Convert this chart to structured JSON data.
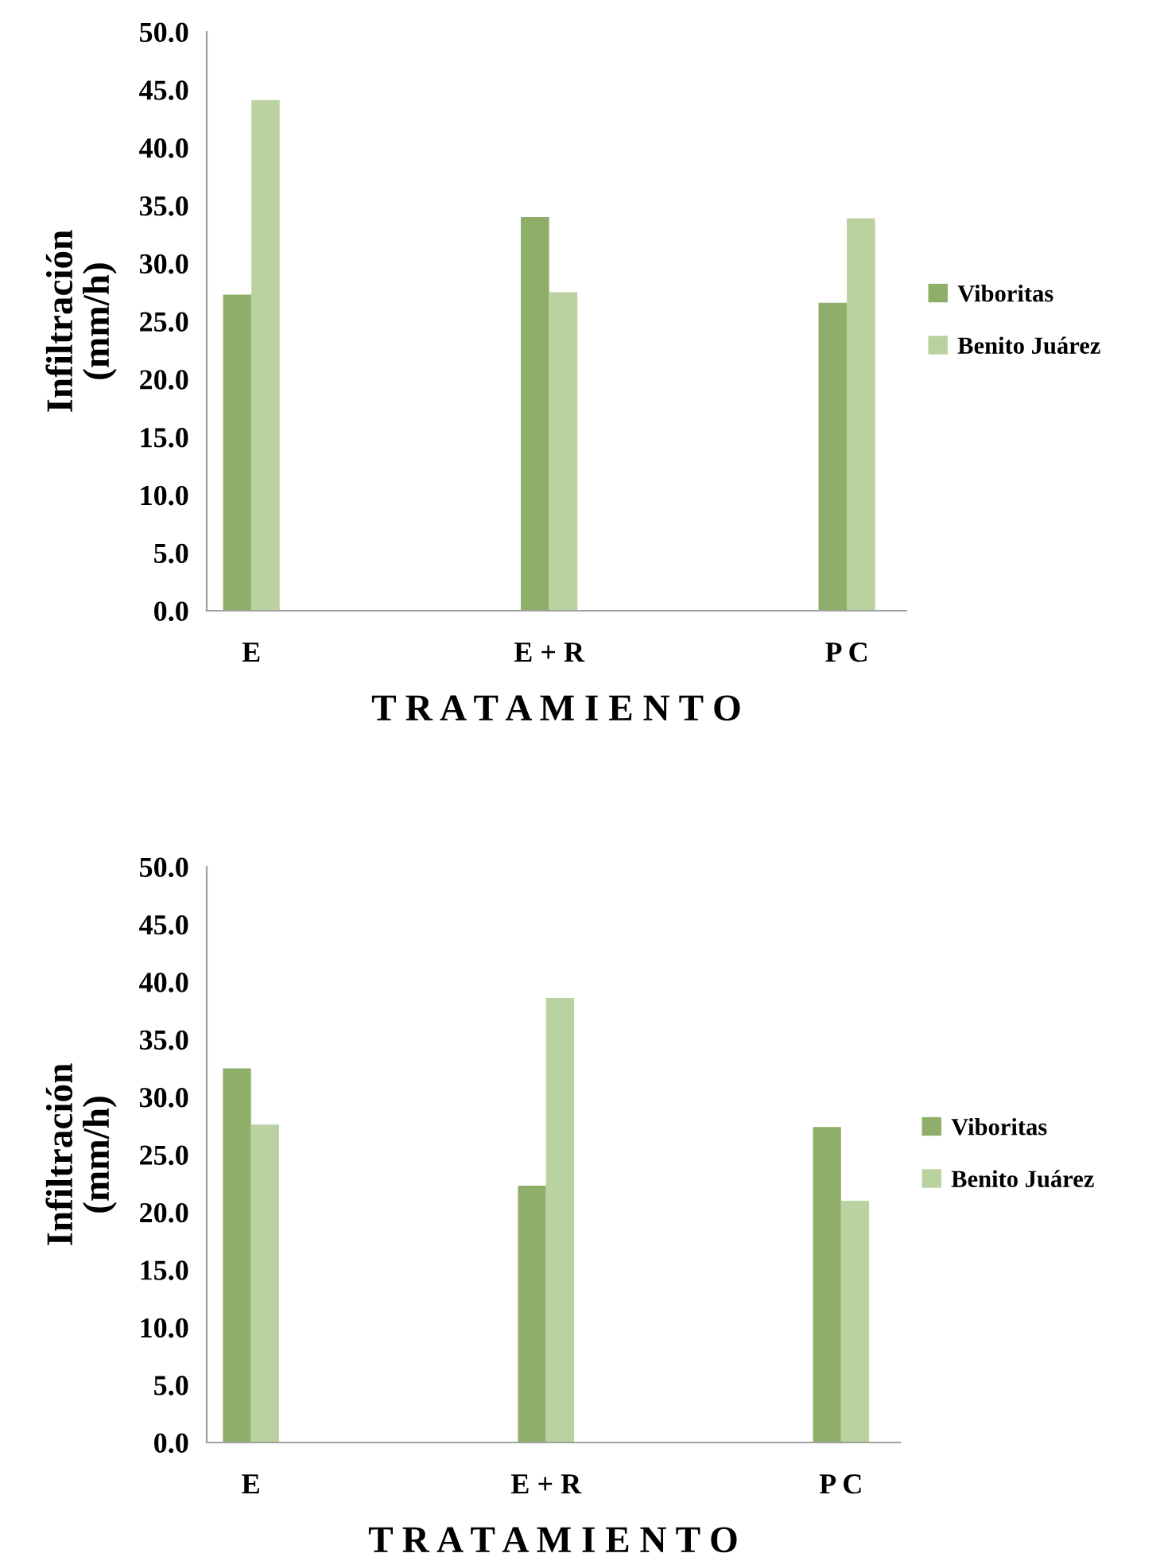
{
  "chart_data": [
    {
      "type": "bar",
      "categories": [
        "E",
        "E + R",
        "P C"
      ],
      "xlabel": "T R A T A M I E N T O",
      "ylabel": "Infiltración\n(mm/h)",
      "ylim": [
        0,
        50
      ],
      "yticks": [
        {
          "value": 0,
          "label": "0.0"
        },
        {
          "value": 5,
          "label": "5.0"
        },
        {
          "value": 10,
          "label": "10.0"
        },
        {
          "value": 15,
          "label": "15.0"
        },
        {
          "value": 20,
          "label": "20.0"
        },
        {
          "value": 25,
          "label": "25.0"
        },
        {
          "value": 30,
          "label": "30.0"
        },
        {
          "value": 35,
          "label": "35.0"
        },
        {
          "value": 40,
          "label": "40.0"
        },
        {
          "value": 45,
          "label": "45.0"
        },
        {
          "value": 50,
          "label": "50.0"
        }
      ],
      "legend": "right",
      "grid": false,
      "series": [
        {
          "name": "Viboritas",
          "color": "#8fae69",
          "values": [
            27.3,
            34.0,
            26.6
          ]
        },
        {
          "name": "Benito Juárez",
          "color": "#b9d2a0",
          "values": [
            44.1,
            27.5,
            33.9
          ]
        }
      ]
    },
    {
      "type": "bar",
      "categories": [
        "E",
        "E + R",
        "P C"
      ],
      "xlabel": "T R A T A M I E N T O",
      "ylabel": "Infiltración\n(mm/h)",
      "ylim": [
        0,
        50
      ],
      "yticks": [
        {
          "value": 0,
          "label": "0.0"
        },
        {
          "value": 5,
          "label": "5.0"
        },
        {
          "value": 10,
          "label": "10.0"
        },
        {
          "value": 15,
          "label": "15.0"
        },
        {
          "value": 20,
          "label": "20.0"
        },
        {
          "value": 25,
          "label": "25.0"
        },
        {
          "value": 30,
          "label": "30.0"
        },
        {
          "value": 35,
          "label": "35.0"
        },
        {
          "value": 40,
          "label": "40.0"
        },
        {
          "value": 45,
          "label": "45.0"
        },
        {
          "value": 50,
          "label": "50.0"
        }
      ],
      "legend": "right",
      "grid": false,
      "series": [
        {
          "name": "Viboritas",
          "color": "#8fae69",
          "values": [
            32.5,
            22.3,
            27.4
          ]
        },
        {
          "name": "Benito Juárez",
          "color": "#b9d2a0",
          "values": [
            27.6,
            38.6,
            21.0
          ]
        }
      ]
    }
  ]
}
